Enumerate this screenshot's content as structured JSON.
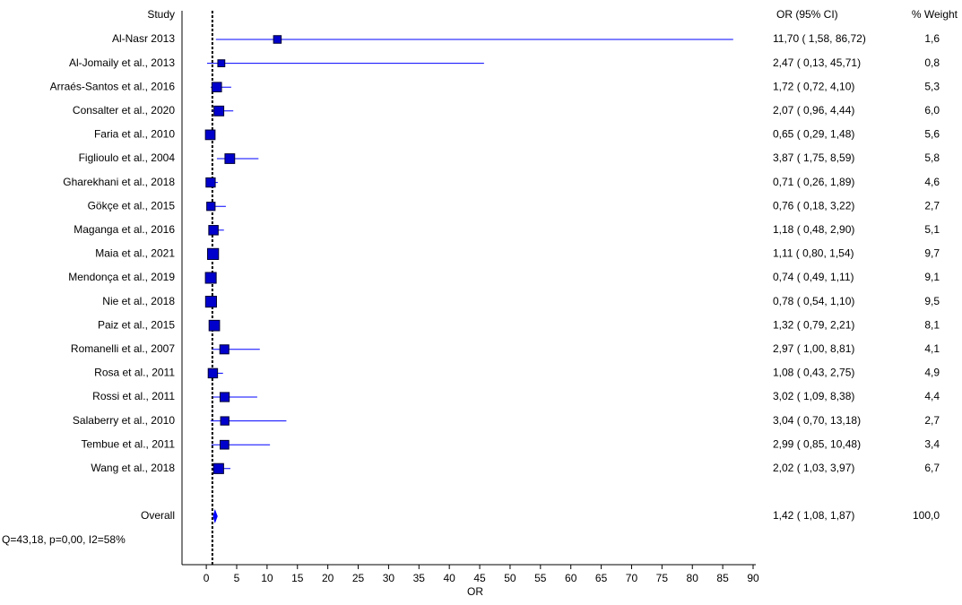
{
  "chart_data": {
    "type": "forest",
    "study_header": "Study",
    "ci_header": "OR (95% CI)",
    "weight_header": "% Weight",
    "x_label": "OR",
    "studies": [
      "Al-Nasr 2013",
      "Al-Jomaily et al., 2013",
      "Arraés-Santos et al., 2016",
      "Consalter et al., 2020",
      "Faria et al., 2010",
      "Figlioulo et al., 2004",
      "Gharekhani et al., 2018",
      "Gökçe et al., 2015",
      "Maganga et al., 2016",
      "Maia et al., 2021",
      "Mendonça et al., 2019",
      "Nie et al., 2018",
      "Paiz et al., 2015",
      "Romanelli et al., 2007",
      "Rosa et al., 2011",
      "Rossi et al., 2011",
      "Salaberry et al., 2010",
      "Tembue et al., 2011",
      "Wang et al., 2018"
    ],
    "or": [
      11.7,
      2.47,
      1.72,
      2.07,
      0.65,
      3.87,
      0.71,
      0.76,
      1.18,
      1.11,
      0.74,
      0.78,
      1.32,
      2.97,
      1.08,
      3.02,
      3.04,
      2.99,
      2.02
    ],
    "lower": [
      1.58,
      0.13,
      0.72,
      0.96,
      0.29,
      1.75,
      0.26,
      0.18,
      0.48,
      0.8,
      0.49,
      0.54,
      0.79,
      1.0,
      0.43,
      1.09,
      0.7,
      0.85,
      1.03
    ],
    "upper": [
      86.72,
      45.71,
      4.1,
      4.44,
      1.48,
      8.59,
      1.89,
      3.22,
      2.9,
      1.54,
      1.11,
      1.1,
      2.21,
      8.81,
      2.75,
      8.38,
      13.18,
      10.48,
      3.97
    ],
    "weight": [
      1.6,
      0.8,
      5.3,
      6.0,
      5.6,
      5.8,
      4.6,
      2.7,
      5.1,
      9.7,
      9.1,
      9.5,
      8.1,
      4.1,
      4.9,
      4.4,
      2.7,
      3.4,
      6.7
    ],
    "ci_labels": [
      "11,70 ( 1,58, 86,72)",
      "2,47 ( 0,13, 45,71)",
      "1,72 ( 0,72, 4,10)",
      "2,07 ( 0,96, 4,44)",
      "0,65 ( 0,29, 1,48)",
      "3,87 ( 1,75, 8,59)",
      "0,71 ( 0,26, 1,89)",
      "0,76 ( 0,18, 3,22)",
      "1,18 ( 0,48, 2,90)",
      "1,11 ( 0,80, 1,54)",
      "0,74 ( 0,49, 1,11)",
      "0,78 ( 0,54, 1,10)",
      "1,32 ( 0,79, 2,21)",
      "2,97 ( 1,00, 8,81)",
      "1,08 ( 0,43, 2,75)",
      "3,02 ( 1,09, 8,38)",
      "3,04 ( 0,70, 13,18)",
      "2,99 ( 0,85, 10,48)",
      "2,02 ( 1,03, 3,97)"
    ],
    "weight_labels": [
      "1,6",
      "0,8",
      "5,3",
      "6,0",
      "5,6",
      "5,8",
      "4,6",
      "2,7",
      "5,1",
      "9,7",
      "9,1",
      "9,5",
      "8,1",
      "4,1",
      "4,9",
      "4,4",
      "2,7",
      "3,4",
      "6,7"
    ],
    "overall": {
      "name": "Overall",
      "or": 1.42,
      "lower": 1.08,
      "upper": 1.87,
      "weight": 100.0,
      "ci_label": "1,42 ( 1,08, 1,87)",
      "weight_label": "100,0"
    },
    "heterogeneity": "Q=43,18, p=0,00, I2=58%",
    "reference_line": 1,
    "xlim": [
      -4,
      90
    ],
    "xticks": [
      0,
      5,
      10,
      15,
      20,
      25,
      30,
      35,
      40,
      45,
      50,
      55,
      60,
      65,
      70,
      75,
      80,
      85,
      90
    ],
    "line_color": "#0000ff",
    "marker_color": "#0000cc"
  }
}
